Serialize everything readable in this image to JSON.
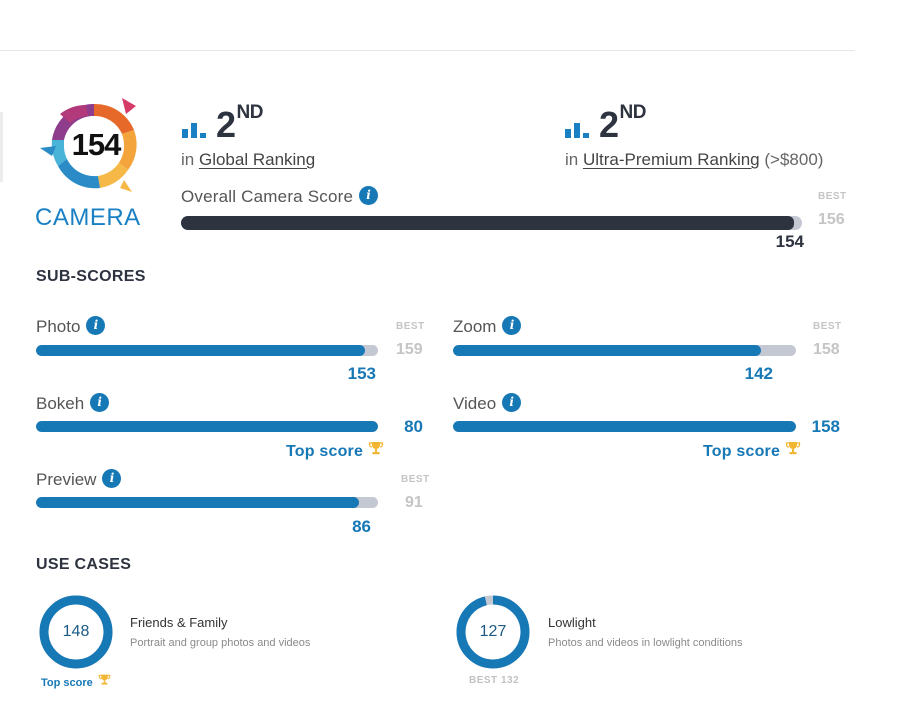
{
  "camera": {
    "score": "154",
    "label": "CAMERA",
    "global_rank": {
      "rank": "2",
      "suffix": "ND",
      "prefix": "in",
      "link": "Global Ranking",
      "extra": ""
    },
    "segment_rank": {
      "rank": "2",
      "suffix": "ND",
      "prefix": "in",
      "link": "Ultra-Premium Ranking",
      "extra": "(>$800)"
    },
    "overall": {
      "label": "Overall Camera Score",
      "value": "154",
      "best_label": "BEST",
      "best": "156",
      "fill": 0.987
    }
  },
  "sub_scores": {
    "title": "SUB-SCORES",
    "items": [
      {
        "label": "Photo",
        "value": "153",
        "best_label": "BEST",
        "best": "159",
        "fill": 0.962,
        "top_score": ""
      },
      {
        "label": "Zoom",
        "value": "142",
        "best_label": "BEST",
        "best": "158",
        "fill": 0.899,
        "top_score": ""
      },
      {
        "label": "Bokeh",
        "value": "80",
        "best_label": "",
        "best": "",
        "fill": 1.0,
        "top_score": "Top score"
      },
      {
        "label": "Video",
        "value": "158",
        "best_label": "",
        "best": "",
        "fill": 1.0,
        "top_score": "Top score"
      },
      {
        "label": "Preview",
        "value": "86",
        "best_label": "BEST",
        "best": "91",
        "fill": 0.945,
        "top_score": ""
      }
    ]
  },
  "use_cases": {
    "title": "USE CASES",
    "items": [
      {
        "value": "148",
        "title": "Friends & Family",
        "desc": "Portrait and group photos and videos",
        "top_score": "Top score",
        "best": "",
        "fill": 1.0
      },
      {
        "value": "127",
        "title": "Lowlight",
        "desc": "Photos and videos in lowlight conditions",
        "top_score": "",
        "best": "BEST 132",
        "fill": 0.962
      }
    ]
  },
  "colors": {
    "accent": "#1778b6",
    "dark": "#2e3340",
    "track": "#c4c8d3",
    "muted": "#c5c5c5"
  },
  "icons": [
    "info-icon",
    "ranking-bars-icon",
    "trophy-icon"
  ]
}
